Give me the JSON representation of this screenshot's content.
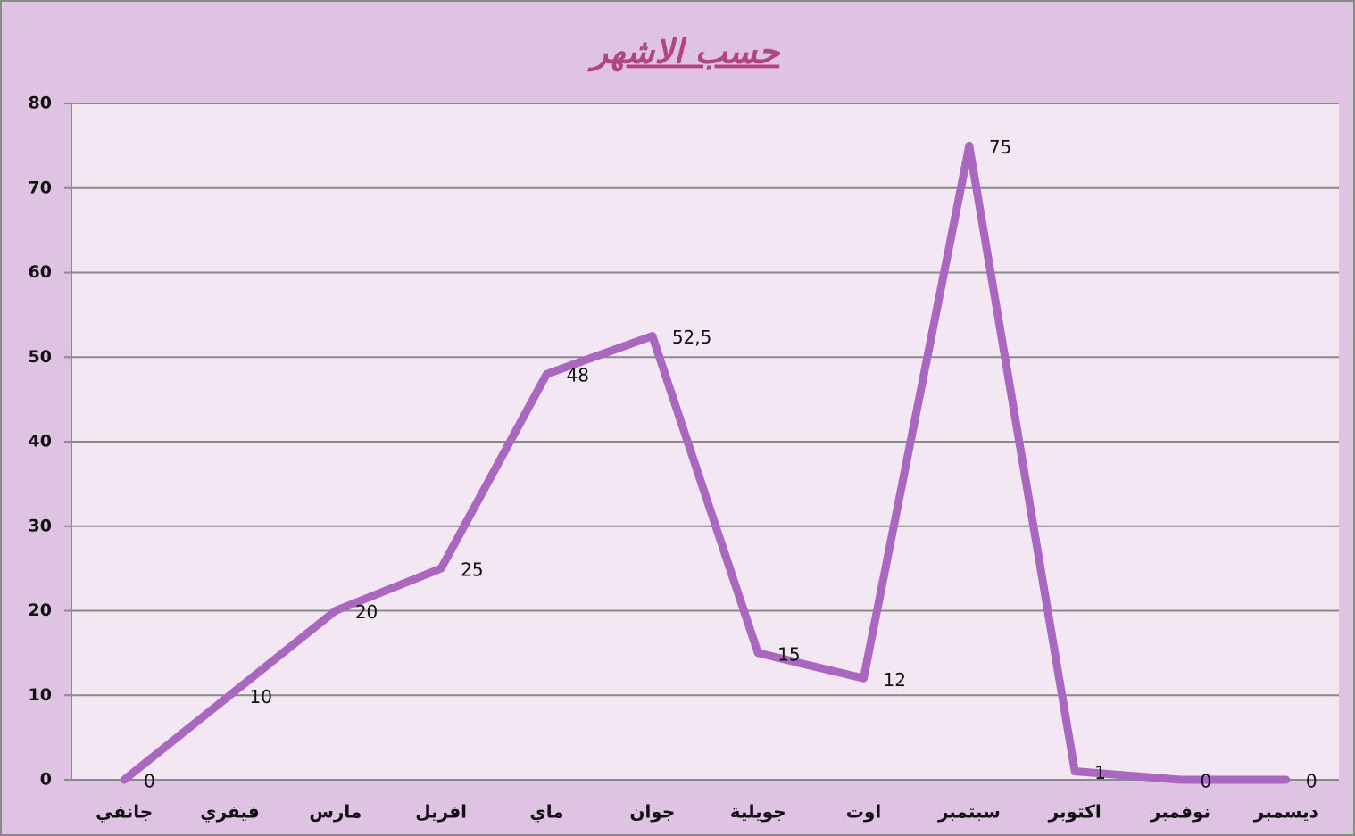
{
  "chart_data": {
    "type": "line",
    "title": "حسب الاشهر",
    "categories": [
      "جانفي",
      "فيفري",
      "مارس",
      "افريل",
      "ماي",
      "جوان",
      "جويلية",
      "اوت",
      "سبتمبر",
      "اكتوبر",
      "نوفمبر",
      "ديسمبر"
    ],
    "values": [
      0,
      10,
      20,
      25,
      48,
      52.5,
      15,
      12,
      75,
      1,
      0,
      0
    ],
    "value_labels": [
      "0",
      "10",
      "20",
      "25",
      "48",
      "52,5",
      "15",
      "12",
      "75",
      "1",
      "0",
      "0"
    ],
    "color": "#a967c0",
    "ylim": [
      0,
      80
    ],
    "yticks": [
      0,
      10,
      20,
      30,
      40,
      50,
      60,
      70,
      80
    ],
    "grid": true
  }
}
